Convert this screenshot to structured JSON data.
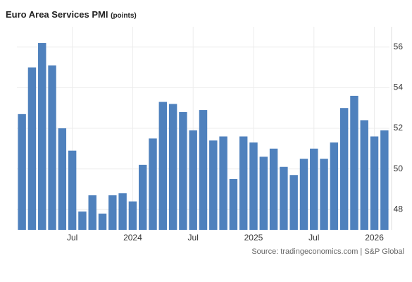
{
  "chart_data": {
    "type": "bar",
    "title": "Euro Area Services PMI",
    "unit": "(points)",
    "source": "Source: tradingeconomics.com | S&P Global",
    "categories": [
      null,
      null,
      null,
      null,
      null,
      "Jul",
      null,
      null,
      null,
      null,
      null,
      "2024",
      null,
      null,
      null,
      null,
      null,
      "Jul",
      null,
      null,
      null,
      null,
      null,
      "2025",
      null,
      null,
      null,
      null,
      null,
      "Jul",
      null,
      null,
      null,
      null,
      null,
      "2026",
      null
    ],
    "values": [
      52.7,
      55.0,
      56.2,
      55.1,
      52.0,
      50.9,
      47.9,
      48.7,
      47.8,
      48.7,
      48.8,
      48.4,
      50.2,
      51.5,
      53.3,
      53.2,
      52.8,
      51.9,
      52.9,
      51.4,
      51.6,
      49.5,
      51.6,
      51.3,
      50.6,
      51.0,
      50.1,
      49.7,
      50.5,
      51.0,
      50.5,
      51.3,
      53.0,
      53.6,
      52.4,
      51.6,
      51.9
    ],
    "color": "#4f81bd",
    "ylim": [
      47,
      57
    ],
    "yticks": [
      48,
      50,
      52,
      54,
      56
    ],
    "grid": true
  }
}
